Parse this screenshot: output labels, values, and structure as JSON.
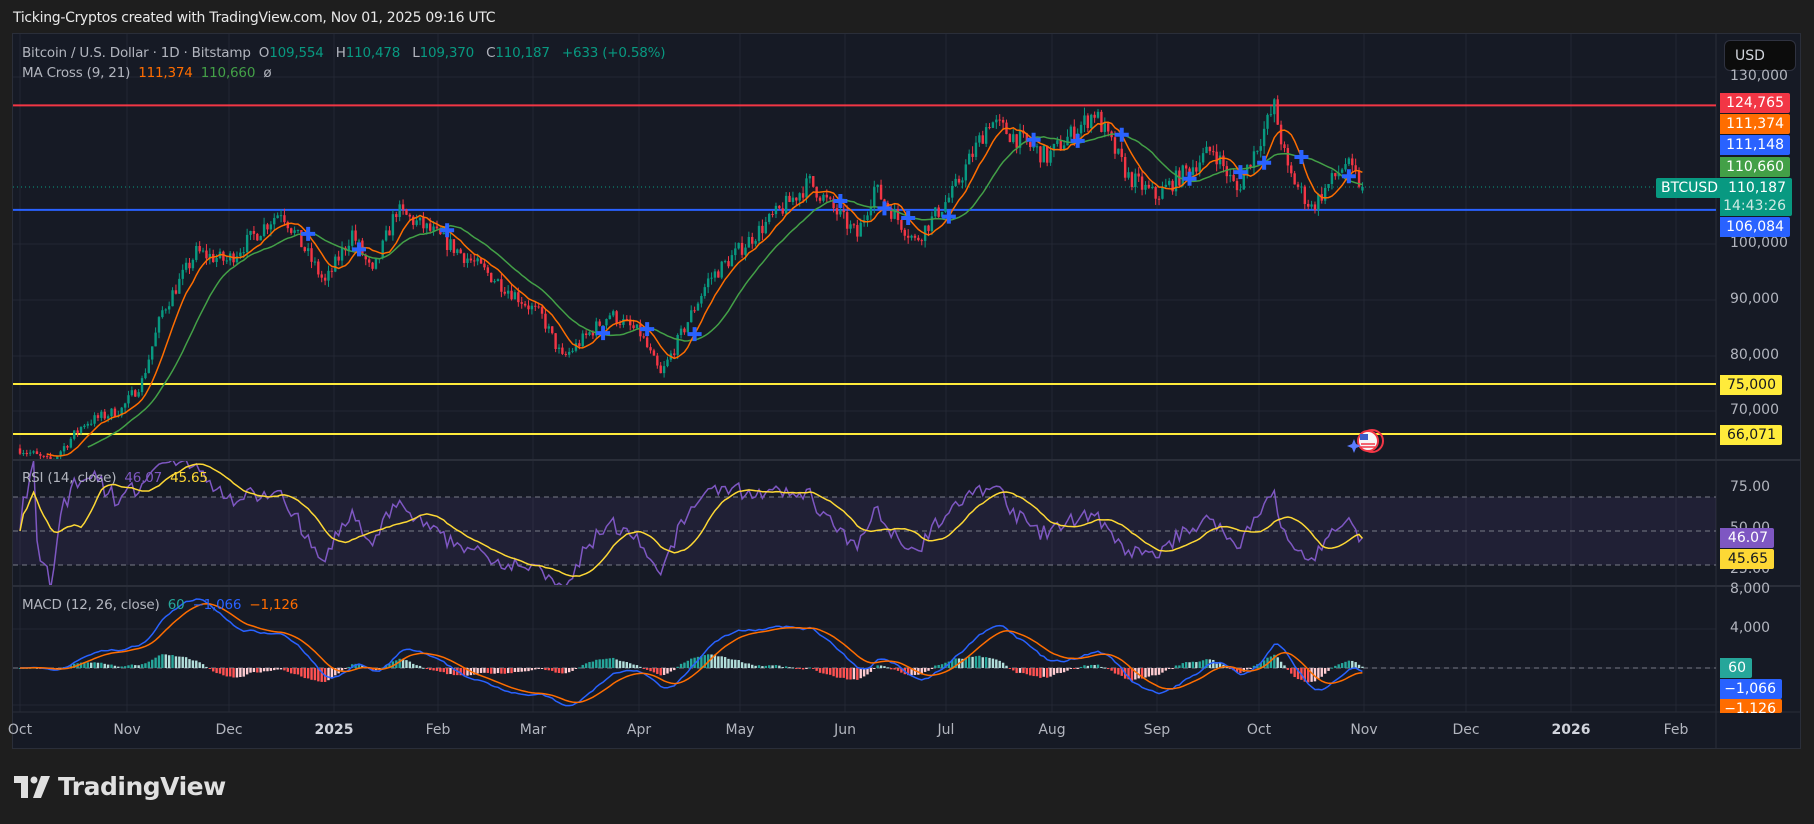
{
  "caption": "Ticking-Cryptos created with TradingView.com, Nov 01, 2025 09:16 UTC",
  "legend": {
    "symbol": "Bitcoin / U.S. Dollar · 1D · Bitstamp",
    "o_label": "O",
    "o": "109,554",
    "h_label": "H",
    "h": "110,478",
    "l_label": "L",
    "l": "109,370",
    "c_label": "C",
    "c": "110,187",
    "change": "+633 (+0.58%)",
    "ma_title": "MA Cross (9, 21)",
    "ma_fast": "111,374",
    "ma_slow": "110,660",
    "ma_extra": "ø"
  },
  "rsi": {
    "title": "RSI (14, close)",
    "value": "46.07",
    "ma": "45.65"
  },
  "macd": {
    "title": "MACD (12, 26, close)",
    "hist": "60",
    "macd": "−1,066",
    "signal": "−1,126"
  },
  "currency_button": "USD",
  "symbol_tag": "BTCUSD",
  "price_axis": {
    "ticks": [
      "130,000",
      "100,000",
      "90,000",
      "80,000",
      "70,000"
    ],
    "tags": [
      {
        "label": "124,765",
        "color": "#f23645"
      },
      {
        "label": "111,374",
        "color": "#ff6d00"
      },
      {
        "label": "111,148",
        "color": "#2962ff"
      },
      {
        "label": "110,660",
        "color": "#43a047"
      },
      {
        "label": "110,187",
        "sub": "14:43:26",
        "color": "#089981"
      },
      {
        "label": "106,084",
        "color": "#2962ff"
      },
      {
        "label": "75,000",
        "color": "#ffeb3b"
      },
      {
        "label": "66,071",
        "color": "#ffeb3b"
      }
    ]
  },
  "rsi_axis": {
    "ticks": [
      "75.00",
      "50.00",
      "25.00"
    ],
    "tags": [
      {
        "label": "46.07",
        "color": "#7e57c2"
      },
      {
        "label": "45.65",
        "color": "#fdd835"
      }
    ]
  },
  "macd_axis": {
    "ticks": [
      "8,000",
      "4,000"
    ],
    "tags": [
      {
        "label": "60",
        "color": "#26a69a"
      },
      {
        "label": "−1,066",
        "color": "#2962ff"
      },
      {
        "label": "−1,126",
        "color": "#ff6d00"
      }
    ]
  },
  "time_axis": [
    "Oct",
    "Nov",
    "Dec",
    "2025",
    "Feb",
    "Mar",
    "Apr",
    "May",
    "Jun",
    "Jul",
    "Aug",
    "Sep",
    "Oct",
    "Nov",
    "Dec",
    "2026",
    "Feb"
  ],
  "brand": "TradingView",
  "colors": {
    "up": "#089981",
    "down": "#f23645",
    "ma_fast": "#ff6d00",
    "ma_slow": "#43a047",
    "resistance": "#f23645",
    "support_blue": "#2962ff",
    "support_yellow": "#ffeb3b"
  },
  "chart_data": {
    "type": "candlestick",
    "title": "Bitcoin / U.S. Dollar · 1D · Bitstamp",
    "xlabel": "",
    "ylabel": "USD",
    "ylim": [
      62000,
      131000
    ],
    "horizontal_levels": [
      {
        "price": 124765,
        "color": "#f23645"
      },
      {
        "price": 106084,
        "color": "#2962ff"
      },
      {
        "price": 75000,
        "color": "#ffeb3b"
      },
      {
        "price": 66071,
        "color": "#ffeb3b"
      }
    ],
    "last": {
      "open": 109554,
      "high": 110478,
      "low": 109370,
      "close": 110187,
      "change": 633,
      "change_pct": 0.58
    },
    "close_anchors": {
      "dates": [
        "2024-10-01",
        "2024-10-10",
        "2024-10-20",
        "2024-10-31",
        "2024-11-06",
        "2024-11-12",
        "2024-11-22",
        "2024-12-01",
        "2024-12-17",
        "2024-12-30",
        "2025-01-07",
        "2025-01-13",
        "2025-01-20",
        "2025-01-31",
        "2025-02-10",
        "2025-02-24",
        "2025-03-04",
        "2025-03-10",
        "2025-03-24",
        "2025-04-02",
        "2025-04-08",
        "2025-04-22",
        "2025-05-08",
        "2025-05-22",
        "2025-06-05",
        "2025-06-10",
        "2025-06-22",
        "2025-07-03",
        "2025-07-14",
        "2025-07-31",
        "2025-08-14",
        "2025-08-24",
        "2025-09-01",
        "2025-09-18",
        "2025-09-25",
        "2025-10-06",
        "2025-10-10",
        "2025-10-17",
        "2025-10-27",
        "2025-11-01"
      ],
      "close": [
        63500,
        61000,
        68000,
        70500,
        75500,
        88000,
        98500,
        97000,
        106000,
        93000,
        102000,
        94500,
        106000,
        102000,
        97500,
        91000,
        87000,
        79500,
        87500,
        84000,
        76500,
        93500,
        103000,
        111000,
        101500,
        110000,
        100500,
        109000,
        122000,
        115500,
        123500,
        112000,
        108500,
        117000,
        109500,
        124500,
        113000,
        106500,
        114500,
        110187
      ]
    },
    "rsi": {
      "ylim": [
        0,
        100
      ],
      "levels": [
        70,
        50,
        30
      ],
      "last": 46.07,
      "ma_last": 45.65
    },
    "macd": {
      "last_hist": 60,
      "last_macd": -1066,
      "last_signal": -1126
    }
  }
}
